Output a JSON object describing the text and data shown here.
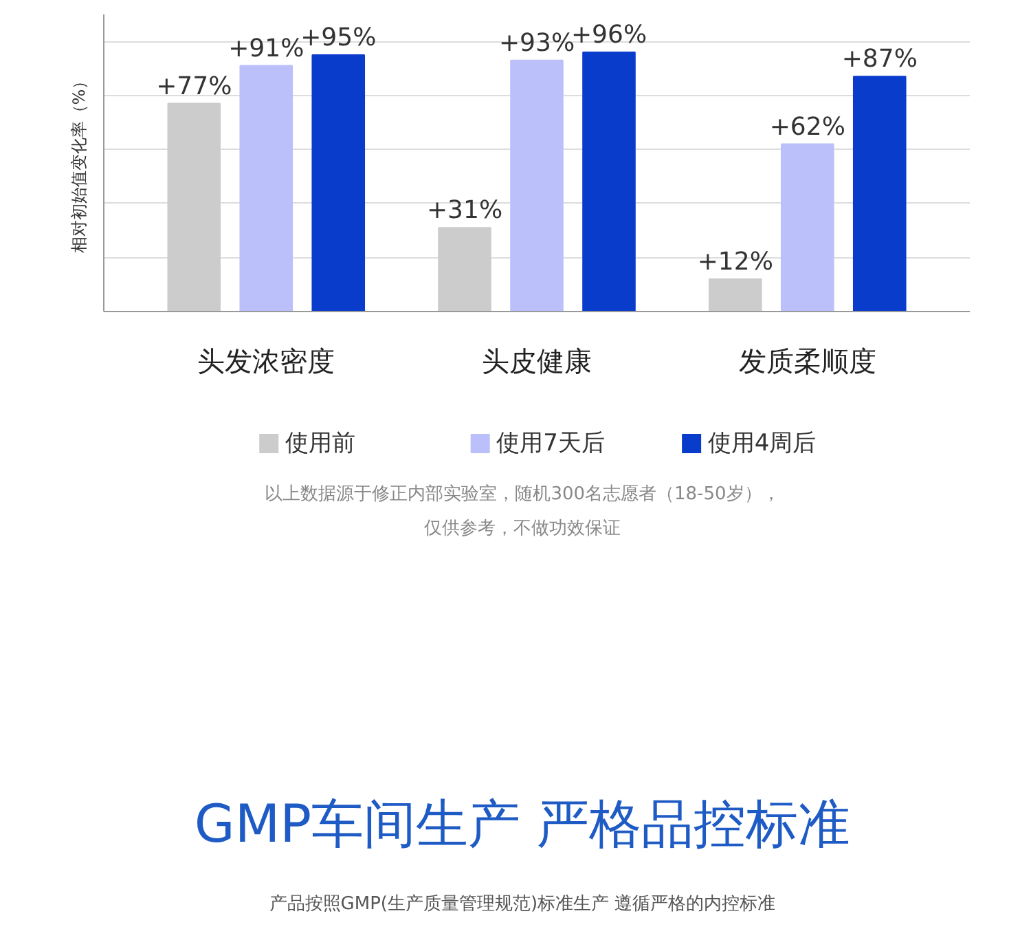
{
  "chart_data": {
    "type": "bar",
    "ylabel": "相对初始值变化率（%）",
    "categories": [
      "头发浓密度",
      "头皮健康",
      "发质柔顺度"
    ],
    "series": [
      {
        "name": "使用前",
        "color": "#cccccc",
        "values": [
          77,
          31,
          12
        ],
        "value_labels": [
          "+77%",
          "+31%",
          "+12%"
        ]
      },
      {
        "name": "使用7天后",
        "color": "#bcc0fa",
        "values": [
          91,
          93,
          62
        ],
        "value_labels": [
          "+91%",
          "+93%",
          "+62%"
        ]
      },
      {
        "name": "使用4周后",
        "color": "#0a3ccc",
        "values": [
          95,
          96,
          87
        ],
        "value_labels": [
          "+95%",
          "+96%",
          "+87%"
        ]
      }
    ],
    "ylim": [
      0,
      110
    ],
    "yticks": [
      {
        "value": 0,
        "label": null
      },
      {
        "value": 20,
        "label": null
      },
      {
        "value": 40,
        "label": null
      },
      {
        "value": 60,
        "label": null
      },
      {
        "value": 80,
        "label": null
      },
      {
        "value": 100,
        "label": null
      }
    ],
    "tick_labels": "x",
    "grid": "y",
    "legend": "bottom",
    "annotations": [
      "以上数据源于修正内部实验室，随机300名志愿者（18-50岁），",
      "仅供参考，不做功效保证",
      "GMP车间生产 严格品控标准",
      "产品按照GMP(生产质量管理规范)标准生产 遵循严格的内控标准"
    ]
  }
}
